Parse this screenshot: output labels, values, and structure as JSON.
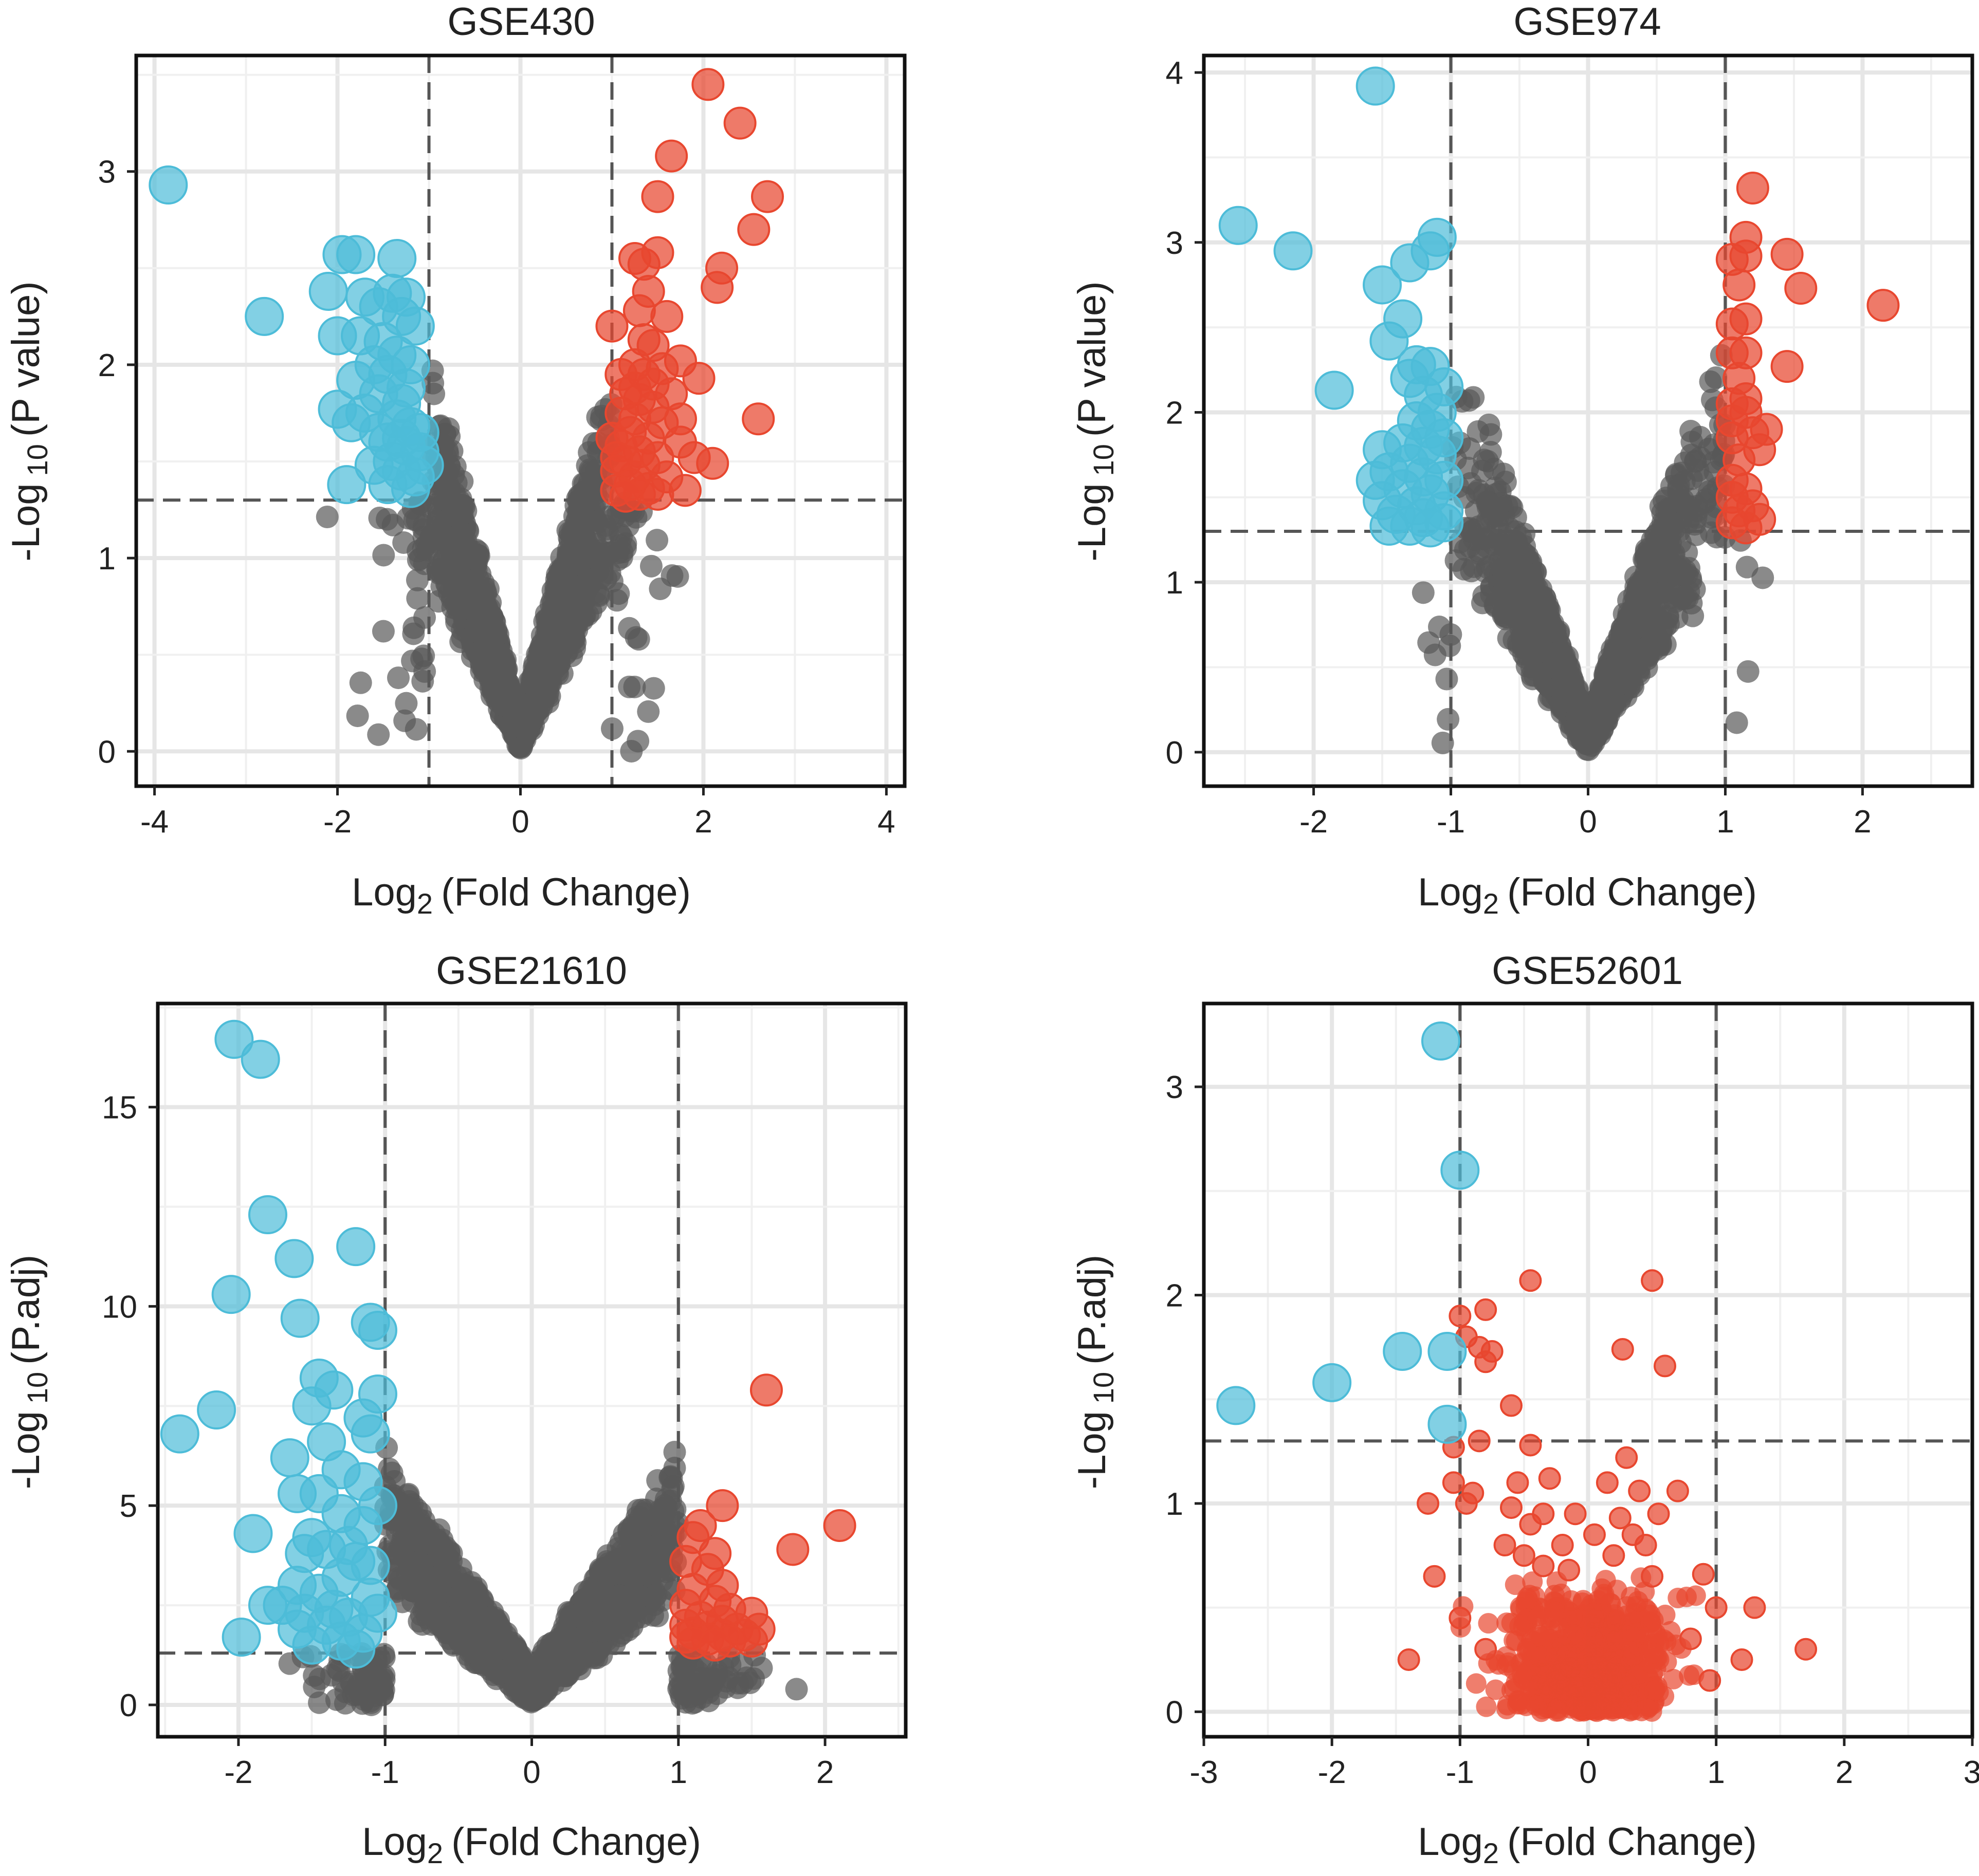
{
  "colors": {
    "up": "#e8472f",
    "down": "#4dbcd8",
    "ns": "#595959"
  },
  "chart_data": [
    {
      "type": "scatter",
      "title": "GSE430",
      "xlabel_main": "Log",
      "xlabel_sub": "2",
      "xlabel_rest": "(Fold Change)",
      "ylabel_main": "-Log",
      "ylabel_sub": "10",
      "ylabel_rest": "(P value)",
      "xlim": [
        -4.2,
        4.2
      ],
      "ylim": [
        -0.18,
        3.6
      ],
      "xticks": [
        -4,
        -2,
        0,
        2,
        4
      ],
      "xtick_labels": [
        "-4",
        "-2",
        "0",
        "2",
        "4"
      ],
      "yticks": [
        0,
        1,
        2,
        3
      ],
      "ytick_labels": [
        "0",
        "1",
        "2",
        "3"
      ],
      "x_thresholds": [
        -1,
        1
      ],
      "y_threshold": 1.3,
      "cloud": {
        "count": 1500,
        "xspread": 1.25,
        "slope": 1.5,
        "ymax": 2.3,
        "color": "ns"
      },
      "up": [
        [
          2.05,
          3.45
        ],
        [
          2.4,
          3.25
        ],
        [
          1.65,
          3.08
        ],
        [
          2.7,
          2.87
        ],
        [
          1.5,
          2.87
        ],
        [
          2.55,
          2.7
        ],
        [
          1.25,
          2.55
        ],
        [
          1.35,
          2.52
        ],
        [
          2.2,
          2.5
        ],
        [
          1.5,
          2.58
        ],
        [
          1.4,
          2.38
        ],
        [
          2.15,
          2.4
        ],
        [
          1.3,
          2.28
        ],
        [
          1.6,
          2.25
        ],
        [
          1.35,
          2.13
        ],
        [
          1.45,
          2.1
        ],
        [
          1.75,
          2.02
        ],
        [
          1.0,
          2.2
        ],
        [
          1.25,
          2.0
        ],
        [
          1.35,
          1.95
        ],
        [
          1.55,
          1.98
        ],
        [
          1.95,
          1.93
        ],
        [
          1.15,
          1.85
        ],
        [
          1.3,
          1.82
        ],
        [
          1.45,
          1.78
        ],
        [
          1.25,
          1.72
        ],
        [
          2.6,
          1.72
        ],
        [
          1.55,
          1.7
        ],
        [
          1.2,
          1.65
        ],
        [
          1.4,
          1.62
        ],
        [
          1.75,
          1.6
        ],
        [
          1.1,
          1.58
        ],
        [
          1.3,
          1.55
        ],
        [
          1.5,
          1.52
        ],
        [
          1.9,
          1.52
        ],
        [
          1.15,
          1.5
        ],
        [
          1.35,
          1.48
        ],
        [
          2.1,
          1.49
        ],
        [
          1.05,
          1.45
        ],
        [
          1.25,
          1.42
        ],
        [
          1.6,
          1.42
        ],
        [
          1.2,
          1.38
        ],
        [
          1.4,
          1.36
        ],
        [
          1.05,
          1.35
        ],
        [
          1.3,
          1.33
        ],
        [
          1.8,
          1.35
        ],
        [
          1.15,
          1.32
        ],
        [
          1.5,
          1.33
        ],
        [
          1.1,
          1.75
        ],
        [
          1.0,
          1.62
        ],
        [
          1.65,
          1.85
        ],
        [
          1.45,
          1.9
        ],
        [
          1.1,
          1.95
        ],
        [
          1.25,
          1.88
        ],
        [
          1.75,
          1.72
        ],
        [
          1.05,
          1.52
        ]
      ],
      "down": [
        [
          -3.85,
          2.93
        ],
        [
          -1.95,
          2.57
        ],
        [
          -1.8,
          2.57
        ],
        [
          -1.35,
          2.55
        ],
        [
          -2.1,
          2.38
        ],
        [
          -1.7,
          2.35
        ],
        [
          -1.4,
          2.37
        ],
        [
          -1.25,
          2.35
        ],
        [
          -2.8,
          2.25
        ],
        [
          -1.55,
          2.3
        ],
        [
          -1.3,
          2.25
        ],
        [
          -1.75,
          2.15
        ],
        [
          -1.15,
          2.2
        ],
        [
          -2.0,
          2.15
        ],
        [
          -1.5,
          2.12
        ],
        [
          -1.35,
          2.05
        ],
        [
          -1.6,
          2.0
        ],
        [
          -1.2,
          2.0
        ],
        [
          -1.45,
          1.95
        ],
        [
          -1.8,
          1.92
        ],
        [
          -1.25,
          1.88
        ],
        [
          -1.55,
          1.85
        ],
        [
          -1.3,
          1.8
        ],
        [
          -2.0,
          1.77
        ],
        [
          -1.7,
          1.75
        ],
        [
          -1.35,
          1.72
        ],
        [
          -1.2,
          1.68
        ],
        [
          -1.55,
          1.65
        ],
        [
          -1.85,
          1.7
        ],
        [
          -1.45,
          1.6
        ],
        [
          -1.25,
          1.58
        ],
        [
          -1.1,
          1.55
        ],
        [
          -1.4,
          1.5
        ],
        [
          -1.6,
          1.48
        ],
        [
          -1.3,
          1.45
        ],
        [
          -1.15,
          1.42
        ],
        [
          -1.9,
          1.38
        ],
        [
          -1.45,
          1.38
        ],
        [
          -1.2,
          1.36
        ],
        [
          -1.05,
          1.48
        ],
        [
          -1.1,
          1.65
        ],
        [
          -1.3,
          1.62
        ]
      ]
    },
    {
      "type": "scatter",
      "title": "GSE974",
      "xlabel_main": "Log",
      "xlabel_sub": "2",
      "xlabel_rest": "(Fold Change)",
      "ylabel_main": "-Log",
      "ylabel_sub": "10",
      "ylabel_rest": "(P value)",
      "xlim": [
        -2.8,
        2.8
      ],
      "ylim": [
        -0.2,
        4.1
      ],
      "xticks": [
        -2,
        -1,
        0,
        1,
        2
      ],
      "xtick_labels": [
        "-2",
        "-1",
        "0",
        "1",
        "2"
      ],
      "yticks": [
        0,
        1,
        2,
        3,
        4
      ],
      "ytick_labels": [
        "0",
        "1",
        "2",
        "3",
        "4"
      ],
      "x_thresholds": [
        -1,
        1
      ],
      "y_threshold": 1.3,
      "cloud": {
        "count": 1500,
        "xspread": 0.95,
        "slope": 1.9,
        "ymax": 2.4,
        "color": "ns"
      },
      "up": [
        [
          1.2,
          3.32
        ],
        [
          1.15,
          3.03
        ],
        [
          1.05,
          2.9
        ],
        [
          1.15,
          2.92
        ],
        [
          1.45,
          2.93
        ],
        [
          1.55,
          2.73
        ],
        [
          2.15,
          2.63
        ],
        [
          1.1,
          2.75
        ],
        [
          1.05,
          2.52
        ],
        [
          1.15,
          2.55
        ],
        [
          1.15,
          2.35
        ],
        [
          1.05,
          2.35
        ],
        [
          1.45,
          2.27
        ],
        [
          1.1,
          2.2
        ],
        [
          1.15,
          2.08
        ],
        [
          1.05,
          2.05
        ],
        [
          1.15,
          2.0
        ],
        [
          1.2,
          1.88
        ],
        [
          1.05,
          1.85
        ],
        [
          1.25,
          1.78
        ],
        [
          1.1,
          1.72
        ],
        [
          1.05,
          1.6
        ],
        [
          1.15,
          1.55
        ],
        [
          1.05,
          1.5
        ],
        [
          1.2,
          1.45
        ],
        [
          1.1,
          1.42
        ],
        [
          1.25,
          1.37
        ],
        [
          1.05,
          1.35
        ],
        [
          1.15,
          1.32
        ],
        [
          1.05,
          1.95
        ],
        [
          1.3,
          1.9
        ]
      ],
      "down": [
        [
          -1.55,
          3.92
        ],
        [
          -2.55,
          3.1
        ],
        [
          -2.15,
          2.95
        ],
        [
          -1.1,
          3.03
        ],
        [
          -1.15,
          2.95
        ],
        [
          -1.3,
          2.88
        ],
        [
          -1.5,
          2.75
        ],
        [
          -1.35,
          2.55
        ],
        [
          -1.45,
          2.42
        ],
        [
          -1.85,
          2.13
        ],
        [
          -1.25,
          2.28
        ],
        [
          -1.15,
          2.27
        ],
        [
          -1.3,
          2.2
        ],
        [
          -1.05,
          2.15
        ],
        [
          -1.2,
          2.1
        ],
        [
          -1.1,
          2.0
        ],
        [
          -1.25,
          1.95
        ],
        [
          -1.15,
          1.9
        ],
        [
          -1.05,
          1.85
        ],
        [
          -1.35,
          1.82
        ],
        [
          -1.2,
          1.8
        ],
        [
          -1.5,
          1.78
        ],
        [
          -1.1,
          1.75
        ],
        [
          -1.3,
          1.7
        ],
        [
          -1.45,
          1.65
        ],
        [
          -1.2,
          1.62
        ],
        [
          -1.05,
          1.6
        ],
        [
          -1.55,
          1.6
        ],
        [
          -1.35,
          1.55
        ],
        [
          -1.15,
          1.52
        ],
        [
          -1.5,
          1.48
        ],
        [
          -1.25,
          1.45
        ],
        [
          -1.05,
          1.42
        ],
        [
          -1.4,
          1.4
        ],
        [
          -1.2,
          1.38
        ],
        [
          -1.05,
          1.35
        ],
        [
          -1.3,
          1.33
        ],
        [
          -1.45,
          1.33
        ],
        [
          -1.15,
          1.32
        ]
      ]
    },
    {
      "type": "scatter",
      "title": "GSE21610",
      "xlabel_main": "Log",
      "xlabel_sub": "2",
      "xlabel_rest": "(Fold Change)",
      "ylabel_main": "-Log",
      "ylabel_sub": "10",
      "ylabel_rest": "(P.adj)",
      "xlim": [
        -2.55,
        2.55
      ],
      "ylim": [
        -0.8,
        17.6
      ],
      "xticks": [
        -2,
        -1,
        0,
        1,
        2
      ],
      "xtick_labels": [
        "-2",
        "-1",
        "0",
        "1",
        "2"
      ],
      "yticks": [
        0,
        5,
        10,
        15
      ],
      "ytick_labels": [
        "0",
        "5",
        "10",
        "15"
      ],
      "x_thresholds": [
        -1,
        1
      ],
      "y_threshold": 1.3,
      "cloud": {
        "count": 1800,
        "xspread": 1.3,
        "slope": 4.5,
        "ymax": 11,
        "color": "ns"
      },
      "up": [
        [
          1.6,
          7.9
        ],
        [
          2.1,
          4.5
        ],
        [
          1.78,
          3.9
        ],
        [
          1.3,
          5.0
        ],
        [
          1.15,
          4.5
        ],
        [
          1.1,
          4.2
        ],
        [
          1.25,
          3.8
        ],
        [
          1.05,
          3.6
        ],
        [
          1.2,
          3.4
        ],
        [
          1.3,
          3.0
        ],
        [
          1.1,
          2.9
        ],
        [
          1.25,
          2.6
        ],
        [
          1.05,
          2.5
        ],
        [
          1.35,
          2.4
        ],
        [
          1.5,
          2.3
        ],
        [
          1.15,
          2.2
        ],
        [
          1.3,
          2.1
        ],
        [
          1.05,
          2.0
        ],
        [
          1.2,
          1.95
        ],
        [
          1.4,
          1.9
        ],
        [
          1.55,
          1.9
        ],
        [
          1.1,
          1.8
        ],
        [
          1.3,
          1.75
        ],
        [
          1.45,
          1.75
        ],
        [
          1.05,
          1.7
        ],
        [
          1.2,
          1.65
        ],
        [
          1.35,
          1.6
        ],
        [
          1.5,
          1.6
        ],
        [
          1.1,
          1.55
        ],
        [
          1.25,
          1.5
        ]
      ],
      "down": [
        [
          -2.03,
          16.7
        ],
        [
          -1.85,
          16.2
        ],
        [
          -1.8,
          12.3
        ],
        [
          -1.62,
          11.2
        ],
        [
          -1.2,
          11.5
        ],
        [
          -2.05,
          10.3
        ],
        [
          -1.58,
          9.7
        ],
        [
          -1.1,
          9.6
        ],
        [
          -1.05,
          9.4
        ],
        [
          -1.45,
          8.2
        ],
        [
          -1.35,
          7.9
        ],
        [
          -1.5,
          7.5
        ],
        [
          -1.05,
          7.8
        ],
        [
          -1.15,
          7.2
        ],
        [
          -1.1,
          6.8
        ],
        [
          -2.4,
          6.8
        ],
        [
          -2.15,
          7.4
        ],
        [
          -1.4,
          6.6
        ],
        [
          -1.65,
          6.2
        ],
        [
          -1.3,
          5.9
        ],
        [
          -1.15,
          5.6
        ],
        [
          -1.6,
          5.3
        ],
        [
          -1.45,
          5.3
        ],
        [
          -1.05,
          5.0
        ],
        [
          -1.3,
          4.8
        ],
        [
          -1.5,
          4.2
        ],
        [
          -1.9,
          4.3
        ],
        [
          -1.15,
          4.5
        ],
        [
          -1.55,
          3.8
        ],
        [
          -1.4,
          3.9
        ],
        [
          -1.2,
          3.6
        ],
        [
          -1.3,
          3.2
        ],
        [
          -1.6,
          3.0
        ],
        [
          -1.45,
          2.8
        ],
        [
          -1.1,
          2.7
        ],
        [
          -1.7,
          2.5
        ],
        [
          -1.8,
          2.5
        ],
        [
          -1.35,
          2.4
        ],
        [
          -1.55,
          2.3
        ],
        [
          -1.25,
          2.2
        ],
        [
          -1.05,
          2.3
        ],
        [
          -1.4,
          2.0
        ],
        [
          -1.6,
          1.9
        ],
        [
          -1.15,
          1.8
        ],
        [
          -1.3,
          1.6
        ],
        [
          -1.5,
          1.5
        ],
        [
          -1.2,
          1.4
        ],
        [
          -1.98,
          1.7
        ],
        [
          -1.1,
          3.5
        ],
        [
          -1.25,
          4.0
        ]
      ]
    },
    {
      "type": "scatter",
      "title": "GSE52601",
      "xlabel_main": "Log",
      "xlabel_sub": "2",
      "xlabel_rest": "(Fold Change)",
      "ylabel_main": "-Log",
      "ylabel_sub": "10",
      "ylabel_rest": "(P.adj)",
      "xlim": [
        -3.0,
        3.0
      ],
      "ylim": [
        -0.12,
        3.4
      ],
      "xticks": [
        -3,
        -2,
        -1,
        0,
        1,
        2,
        3
      ],
      "xtick_labels": [
        "-3",
        "-2",
        "-1",
        "0",
        "1",
        "2",
        "3"
      ],
      "yticks": [
        0,
        1,
        2,
        3
      ],
      "ytick_labels": [
        "0",
        "1",
        "2",
        "3"
      ],
      "x_thresholds": [
        -1,
        1
      ],
      "y_threshold": 1.3,
      "cloud": {
        "count": 700,
        "xspread": 0.7,
        "slope": 0.4,
        "ymax": 0.65,
        "color": "up",
        "small": true
      },
      "up": [
        [
          -0.45,
          2.07
        ],
        [
          0.5,
          2.07
        ],
        [
          -1.0,
          1.9
        ],
        [
          -0.8,
          1.93
        ],
        [
          -0.95,
          1.8
        ],
        [
          -0.85,
          1.75
        ],
        [
          -0.75,
          1.73
        ],
        [
          -0.8,
          1.68
        ],
        [
          0.27,
          1.74
        ],
        [
          0.6,
          1.66
        ],
        [
          -0.6,
          1.47
        ],
        [
          -0.85,
          1.3
        ],
        [
          -1.05,
          1.27
        ],
        [
          -0.45,
          1.28
        ],
        [
          0.3,
          1.22
        ],
        [
          -1.05,
          1.1
        ],
        [
          -0.9,
          1.05
        ],
        [
          -0.55,
          1.1
        ],
        [
          -0.3,
          1.12
        ],
        [
          0.15,
          1.1
        ],
        [
          0.4,
          1.06
        ],
        [
          0.7,
          1.06
        ],
        [
          -0.95,
          1.0
        ],
        [
          -0.6,
          0.98
        ],
        [
          -0.35,
          0.95
        ],
        [
          -0.1,
          0.95
        ],
        [
          0.25,
          0.93
        ],
        [
          0.55,
          0.95
        ],
        [
          -1.25,
          1.0
        ],
        [
          -0.45,
          0.9
        ],
        [
          0.05,
          0.85
        ],
        [
          0.35,
          0.85
        ],
        [
          -0.2,
          0.8
        ],
        [
          0.45,
          0.8
        ],
        [
          -0.65,
          0.8
        ],
        [
          0.2,
          0.75
        ],
        [
          -0.5,
          0.75
        ],
        [
          -0.35,
          0.7
        ],
        [
          0.5,
          0.65
        ],
        [
          -1.2,
          0.65
        ],
        [
          0.9,
          0.66
        ],
        [
          -0.15,
          0.68
        ],
        [
          1.0,
          0.5
        ],
        [
          1.3,
          0.5
        ],
        [
          -1.0,
          0.45
        ],
        [
          1.7,
          0.3
        ],
        [
          -1.4,
          0.25
        ],
        [
          1.2,
          0.25
        ],
        [
          -0.8,
          0.3
        ],
        [
          0.8,
          0.35
        ],
        [
          0.95,
          0.15
        ]
      ],
      "down": [
        [
          -1.15,
          3.22
        ],
        [
          -1.0,
          2.6
        ],
        [
          -1.45,
          1.73
        ],
        [
          -1.1,
          1.73
        ],
        [
          -2.0,
          1.58
        ],
        [
          -2.75,
          1.47
        ],
        [
          -1.1,
          1.38
        ]
      ]
    }
  ]
}
